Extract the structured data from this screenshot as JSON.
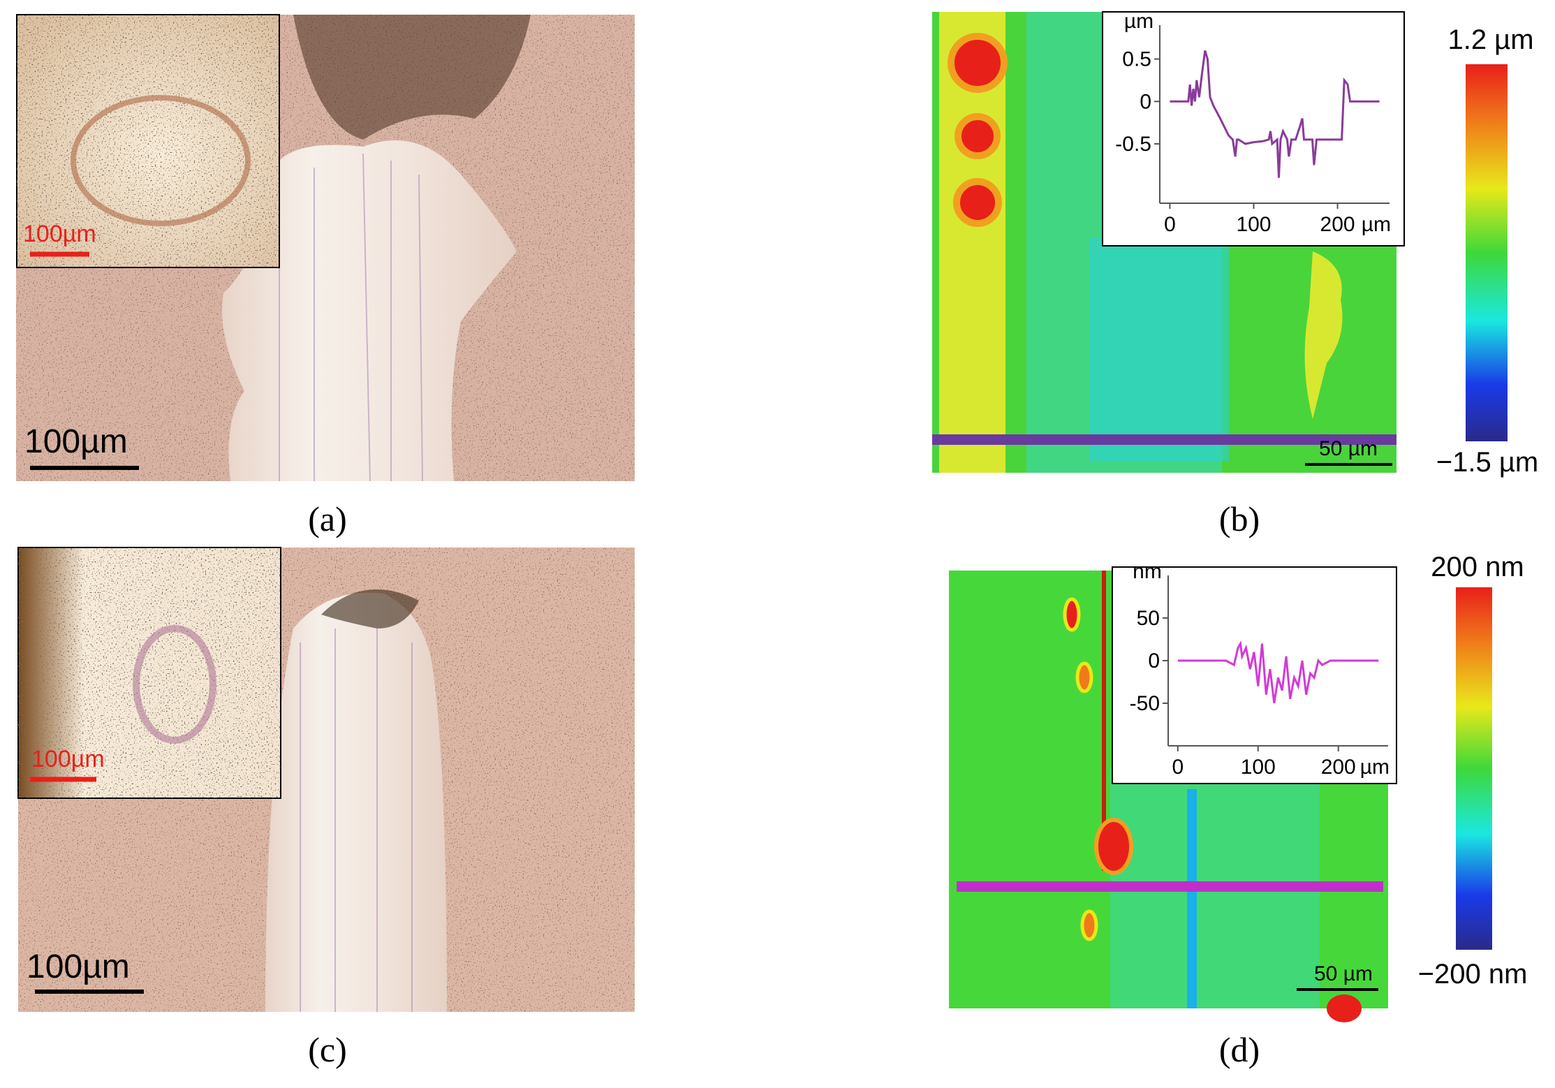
{
  "panels": [
    {
      "label": "(a)",
      "scale_bar": "100µm",
      "inset_scale_bar": "100µm"
    },
    {
      "label": "(b)",
      "scale_bar": "50 µm",
      "colorbar": {
        "max": "1.2 µm",
        "min": "−1.5 µm"
      },
      "profile": {
        "y_unit": "µm",
        "x_unit": "µm",
        "xlim": [
          -12,
          262
        ],
        "ylim": [
          -1.2,
          0.9
        ],
        "xticks": [
          0,
          100,
          200
        ],
        "yticks": [
          0.5,
          0,
          -0.5
        ],
        "x": [
          0,
          22,
          24,
          26,
          28,
          30,
          32,
          35,
          38,
          42,
          45,
          48,
          52,
          60,
          70,
          75,
          78,
          80,
          82,
          90,
          100,
          110,
          118,
          120,
          122,
          128,
          130,
          132,
          135,
          140,
          142,
          145,
          150,
          155,
          158,
          160,
          165,
          170,
          172,
          175,
          178,
          185,
          195,
          205,
          208,
          212,
          215,
          230,
          250
        ],
        "y": [
          0,
          0,
          0.2,
          -0.05,
          0.15,
          0,
          0.25,
          0.05,
          0.3,
          0.6,
          0.5,
          0.05,
          -0.05,
          -0.2,
          -0.4,
          -0.45,
          -0.65,
          -0.45,
          -0.45,
          -0.5,
          -0.48,
          -0.47,
          -0.45,
          -0.35,
          -0.5,
          -0.45,
          -0.9,
          -0.45,
          -0.35,
          -0.45,
          -0.65,
          -0.45,
          -0.45,
          -0.3,
          -0.2,
          -0.45,
          -0.45,
          -0.45,
          -0.75,
          -0.45,
          -0.45,
          -0.45,
          -0.45,
          -0.45,
          0.25,
          0.2,
          0,
          0,
          0
        ],
        "color": "#8a3a9a"
      }
    },
    {
      "label": "(c)",
      "scale_bar": "100µm",
      "inset_scale_bar": "100µm"
    },
    {
      "label": "(d)",
      "scale_bar": "50 µm",
      "colorbar": {
        "max": "200 nm",
        "min": "−200 nm"
      },
      "profile": {
        "y_unit": "nm",
        "x_unit": "µm",
        "xlim": [
          -12,
          262
        ],
        "ylim": [
          -100,
          100
        ],
        "xticks": [
          0,
          100,
          200
        ],
        "yticks": [
          50,
          0,
          -50
        ],
        "x": [
          0,
          60,
          70,
          75,
          78,
          80,
          85,
          90,
          95,
          100,
          105,
          110,
          115,
          120,
          125,
          130,
          135,
          140,
          145,
          150,
          155,
          160,
          165,
          170,
          175,
          180,
          190,
          220,
          250
        ],
        "y": [
          0,
          0,
          -5,
          15,
          20,
          5,
          15,
          -10,
          10,
          -30,
          20,
          -40,
          -10,
          -50,
          -20,
          -35,
          5,
          -45,
          -20,
          -30,
          0,
          -40,
          -15,
          -20,
          0,
          -5,
          0,
          0,
          0
        ],
        "color": "#d23ad6"
      }
    }
  ]
}
